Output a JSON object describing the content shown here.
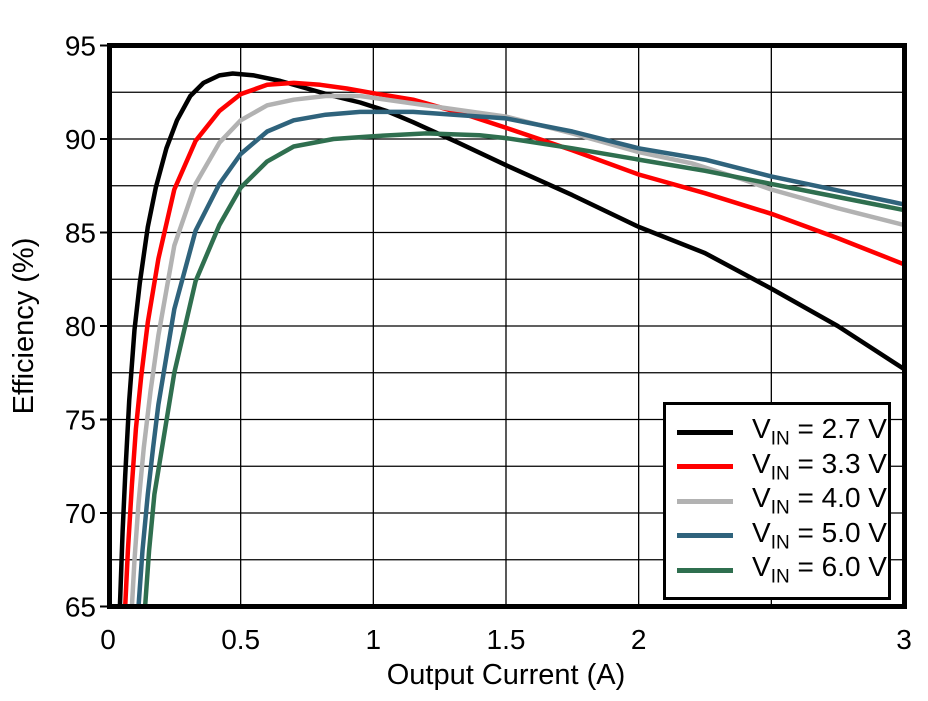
{
  "chart_data": {
    "type": "line",
    "title": "",
    "xlabel": "Output Current (A)",
    "ylabel": "Efficiency (%)",
    "xlim": [
      0,
      3
    ],
    "ylim": [
      65,
      95
    ],
    "grid": true,
    "legend_position": "bottom-right",
    "axis_color": "#000000",
    "grid_color": "#000000",
    "x_tick_values": [
      0,
      0.5,
      1,
      1.5,
      2,
      2.5,
      3
    ],
    "x_tick_labels": [
      "0",
      "0.5",
      "1",
      "1.5",
      "2",
      "",
      "3"
    ],
    "y_tick_values": [
      95,
      90,
      85,
      80,
      75,
      70,
      65
    ],
    "y_tick_labels": [
      "95",
      "90",
      "85",
      "80",
      "75",
      "70",
      "65"
    ],
    "x_grid_values": [
      0.5,
      1,
      1.5,
      2,
      2.5
    ],
    "y_grid_values": [
      67.5,
      70,
      72.5,
      75,
      77.5,
      80,
      82.5,
      85,
      87.5,
      90,
      92.5
    ],
    "series": [
      {
        "name": "VIN = 2.7 V",
        "label_main": "V",
        "label_sub": "IN",
        "label_rest": " = 2.7 V",
        "color": "#000000",
        "points": [
          [
            0.045,
            65
          ],
          [
            0.055,
            69
          ],
          [
            0.065,
            72
          ],
          [
            0.08,
            76
          ],
          [
            0.1,
            79.8
          ],
          [
            0.12,
            82.3
          ],
          [
            0.15,
            85.3
          ],
          [
            0.18,
            87.4
          ],
          [
            0.22,
            89.5
          ],
          [
            0.26,
            91
          ],
          [
            0.31,
            92.3
          ],
          [
            0.36,
            93
          ],
          [
            0.42,
            93.4
          ],
          [
            0.47,
            93.5
          ],
          [
            0.55,
            93.4
          ],
          [
            0.65,
            93.1
          ],
          [
            0.75,
            92.7
          ],
          [
            0.85,
            92.3
          ],
          [
            0.95,
            91.95
          ],
          [
            1.05,
            91.5
          ],
          [
            1.15,
            90.9
          ],
          [
            1.32,
            89.8
          ],
          [
            1.5,
            88.6
          ],
          [
            1.75,
            87
          ],
          [
            2,
            85.3
          ],
          [
            2.25,
            83.9
          ],
          [
            2.5,
            82
          ],
          [
            2.75,
            80
          ],
          [
            3,
            77.7
          ]
        ]
      },
      {
        "name": "VIN = 3.3 V",
        "label_main": "V",
        "label_sub": "IN",
        "label_rest": " = 3.3 V",
        "color": "#ff0000",
        "points": [
          [
            0.065,
            65
          ],
          [
            0.075,
            68
          ],
          [
            0.09,
            71.5
          ],
          [
            0.105,
            74.5
          ],
          [
            0.125,
            77.3
          ],
          [
            0.15,
            80.2
          ],
          [
            0.19,
            83.6
          ],
          [
            0.25,
            87.3
          ],
          [
            0.33,
            89.9
          ],
          [
            0.42,
            91.5
          ],
          [
            0.5,
            92.4
          ],
          [
            0.6,
            92.9
          ],
          [
            0.7,
            93
          ],
          [
            0.8,
            92.9
          ],
          [
            0.9,
            92.7
          ],
          [
            1,
            92.45
          ],
          [
            1.15,
            92.1
          ],
          [
            1.35,
            91.3
          ],
          [
            1.5,
            90.6
          ],
          [
            1.75,
            89.4
          ],
          [
            2,
            88.1
          ],
          [
            2.25,
            87.1
          ],
          [
            2.5,
            86
          ],
          [
            2.75,
            84.7
          ],
          [
            3,
            83.3
          ]
        ]
      },
      {
        "name": "VIN = 4.0 V",
        "label_main": "V",
        "label_sub": "IN",
        "label_rest": " = 4.0 V",
        "color": "#b2b2b2",
        "points": [
          [
            0.09,
            65
          ],
          [
            0.1,
            67.5
          ],
          [
            0.115,
            70.5
          ],
          [
            0.135,
            73.5
          ],
          [
            0.16,
            76.5
          ],
          [
            0.19,
            79.5
          ],
          [
            0.25,
            84.3
          ],
          [
            0.33,
            87.6
          ],
          [
            0.42,
            89.8
          ],
          [
            0.5,
            91
          ],
          [
            0.6,
            91.8
          ],
          [
            0.7,
            92.1
          ],
          [
            0.82,
            92.3
          ],
          [
            0.95,
            92.3
          ],
          [
            1.1,
            92
          ],
          [
            1.3,
            91.6
          ],
          [
            1.5,
            91.2
          ],
          [
            1.75,
            90.3
          ],
          [
            2,
            89.3
          ],
          [
            2.2,
            88.7
          ],
          [
            2.4,
            87.8
          ],
          [
            2.5,
            87.3
          ],
          [
            2.75,
            86.3
          ],
          [
            3,
            85.4
          ]
        ]
      },
      {
        "name": "VIN = 5.0 V",
        "label_main": "V",
        "label_sub": "IN",
        "label_rest": " = 5.0 V",
        "color": "#2f637c",
        "points": [
          [
            0.115,
            65
          ],
          [
            0.13,
            68
          ],
          [
            0.15,
            71
          ],
          [
            0.17,
            73.5
          ],
          [
            0.19,
            75.8
          ],
          [
            0.25,
            80.9
          ],
          [
            0.33,
            85.1
          ],
          [
            0.42,
            87.6
          ],
          [
            0.5,
            89.2
          ],
          [
            0.6,
            90.4
          ],
          [
            0.7,
            91
          ],
          [
            0.82,
            91.3
          ],
          [
            0.95,
            91.45
          ],
          [
            1.15,
            91.45
          ],
          [
            1.35,
            91.25
          ],
          [
            1.5,
            91.1
          ],
          [
            1.75,
            90.4
          ],
          [
            2,
            89.5
          ],
          [
            2.25,
            88.9
          ],
          [
            2.5,
            88
          ],
          [
            2.75,
            87.25
          ],
          [
            3,
            86.5
          ]
        ]
      },
      {
        "name": "VIN = 6.0 V",
        "label_main": "V",
        "label_sub": "IN",
        "label_rest": " = 6.0 V",
        "color": "#2f6f4f",
        "points": [
          [
            0.14,
            65
          ],
          [
            0.155,
            68
          ],
          [
            0.175,
            71
          ],
          [
            0.19,
            72.3
          ],
          [
            0.25,
            77.5
          ],
          [
            0.33,
            82.4
          ],
          [
            0.42,
            85.4
          ],
          [
            0.5,
            87.4
          ],
          [
            0.6,
            88.8
          ],
          [
            0.7,
            89.6
          ],
          [
            0.85,
            90
          ],
          [
            1,
            90.15
          ],
          [
            1.2,
            90.3
          ],
          [
            1.4,
            90.2
          ],
          [
            1.5,
            90.05
          ],
          [
            1.75,
            89.5
          ],
          [
            2,
            88.9
          ],
          [
            2.25,
            88.3
          ],
          [
            2.5,
            87.6
          ],
          [
            2.75,
            86.9
          ],
          [
            3,
            86.2
          ]
        ]
      }
    ]
  }
}
